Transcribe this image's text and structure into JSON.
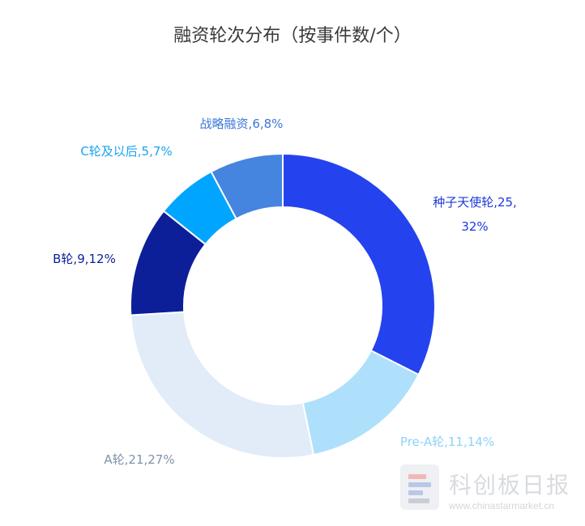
{
  "chart_data": {
    "type": "pie",
    "title": "融资轮次分布（按事件数/个）",
    "donut": true,
    "slices": [
      {
        "name": "种子天使轮",
        "value": 25,
        "percent": "32%",
        "color": "#2443ee",
        "label_color": "#1c39dd"
      },
      {
        "name": "Pre-A轮",
        "value": 11,
        "percent": "14%",
        "color": "#aee0fb",
        "label_color": "#8ed3f6"
      },
      {
        "name": "A轮",
        "value": 21,
        "percent": "27%",
        "color": "#e2ebf8",
        "label_color": "#7f93ab"
      },
      {
        "name": "B轮",
        "value": 9,
        "percent": "12%",
        "color": "#0c1f99",
        "label_color": "#0c1f99"
      },
      {
        "name": "C轮及以后",
        "value": 5,
        "percent": "7%",
        "color": "#00a5ff",
        "label_color": "#1aa3f0"
      },
      {
        "name": "战略融资",
        "value": 6,
        "percent": "8%",
        "color": "#4585e0",
        "label_color": "#3b77d6"
      }
    ],
    "labels": [
      {
        "lines": [
          "种子天使轮,25,",
          "32%"
        ]
      },
      {
        "lines": [
          "Pre-A轮,11,14%"
        ]
      },
      {
        "lines": [
          "A轮,21,27%"
        ]
      },
      {
        "lines": [
          "B轮,9,12%"
        ]
      },
      {
        "lines": [
          "C轮及以后,5,7%"
        ]
      },
      {
        "lines": [
          "战略融资,6,8%"
        ]
      }
    ]
  },
  "watermark": {
    "brand": "科创板日报",
    "url": "www.chinastarmarket.cn"
  }
}
